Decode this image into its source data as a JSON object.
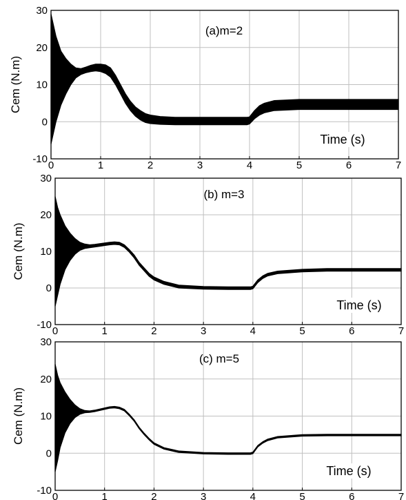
{
  "chart_data": [
    {
      "type": "line",
      "annotation": "(a)m=2",
      "ylabel": "Cem (N.m)",
      "xlabel": "Time (s)",
      "xlim": [
        0,
        7
      ],
      "ylim": [
        -10,
        30
      ],
      "x_ticks": [
        "0",
        "1",
        "2",
        "3",
        "4",
        "5",
        "6",
        "7"
      ],
      "y_ticks": [
        "-10",
        "0",
        "10",
        "20",
        "30"
      ],
      "grid": true,
      "envelope_t": [
        0,
        0.05,
        0.1,
        0.2,
        0.3,
        0.4,
        0.5,
        0.6,
        0.7,
        0.8,
        0.9,
        1.0,
        1.1,
        1.2,
        1.3,
        1.4,
        1.5,
        1.6,
        1.7,
        1.8,
        1.9,
        2.0,
        2.2,
        2.5,
        3.0,
        3.5,
        3.95,
        4.0,
        4.1,
        4.2,
        4.3,
        4.5,
        5.0,
        5.5,
        6.0,
        6.5,
        7.0
      ],
      "upper": [
        29,
        26,
        23,
        19,
        17,
        15.5,
        14.5,
        14.3,
        14.7,
        15.2,
        15.5,
        15.5,
        15.3,
        14.5,
        12.5,
        10,
        7.5,
        5.5,
        4,
        3,
        2.2,
        1.8,
        1.4,
        1.2,
        1.2,
        1.2,
        1.2,
        1.3,
        3,
        4.3,
        5,
        5.7,
        6,
        6,
        6,
        6,
        6
      ],
      "lower": [
        -6,
        -3,
        0,
        4.5,
        7.5,
        10,
        11.8,
        12.7,
        13.2,
        13.5,
        13.7,
        13.5,
        13,
        12,
        10,
        7.5,
        5,
        3,
        1.5,
        0.5,
        -0.2,
        -0.5,
        -0.7,
        -0.8,
        -0.8,
        -0.8,
        -0.8,
        -0.6,
        0.8,
        1.8,
        2.4,
        3,
        3.3,
        3.3,
        3.3,
        3.3,
        3.3
      ]
    },
    {
      "type": "line",
      "annotation": "(b) m=3",
      "ylabel": "Cem (N.m)",
      "xlabel": "Time (s)",
      "xlim": [
        0,
        7
      ],
      "ylim": [
        -10,
        30
      ],
      "x_ticks": [
        "0",
        "1",
        "2",
        "3",
        "4",
        "5",
        "6",
        "7"
      ],
      "y_ticks": [
        "-10",
        "0",
        "10",
        "20",
        "30"
      ],
      "grid": true,
      "envelope_t": [
        0,
        0.05,
        0.1,
        0.2,
        0.3,
        0.4,
        0.5,
        0.6,
        0.7,
        0.8,
        0.9,
        1.0,
        1.1,
        1.2,
        1.3,
        1.4,
        1.5,
        1.6,
        1.7,
        1.8,
        1.9,
        2.0,
        2.2,
        2.5,
        3.0,
        3.5,
        3.95,
        4.0,
        4.1,
        4.2,
        4.3,
        4.5,
        5.0,
        5.5,
        6.0,
        6.5,
        7.0
      ],
      "upper": [
        25,
        22,
        20,
        17,
        15,
        13.5,
        12.5,
        12,
        11.8,
        11.9,
        12.1,
        12.3,
        12.5,
        12.6,
        12.5,
        11.8,
        10.5,
        9,
        7,
        5.5,
        4,
        3,
        1.8,
        0.8,
        0.4,
        0.3,
        0.3,
        0.5,
        2.2,
        3.3,
        4,
        4.6,
        5.1,
        5.3,
        5.3,
        5.3,
        5.3
      ],
      "lower": [
        -5,
        -2,
        1,
        5,
        7.5,
        9.2,
        10.3,
        10.8,
        11,
        11.2,
        11.4,
        11.6,
        11.8,
        11.9,
        11.8,
        11.1,
        9.8,
        8.2,
        6.2,
        4.7,
        3.2,
        2.2,
        1,
        0,
        -0.3,
        -0.4,
        -0.4,
        -0.2,
        1.5,
        2.6,
        3.3,
        3.9,
        4.4,
        4.6,
        4.6,
        4.6,
        4.6
      ]
    },
    {
      "type": "line",
      "annotation": "(c) m=5",
      "ylabel": "Cem (N.m)",
      "xlabel": "Time (s)",
      "xlim": [
        0,
        7
      ],
      "ylim": [
        -10,
        30
      ],
      "x_ticks": [
        "0",
        "1",
        "2",
        "3",
        "4",
        "5",
        "6",
        "7"
      ],
      "y_ticks": [
        "-10",
        "0",
        "10",
        "20",
        "30"
      ],
      "grid": true,
      "envelope_t": [
        0,
        0.05,
        0.1,
        0.2,
        0.3,
        0.4,
        0.5,
        0.6,
        0.7,
        0.8,
        0.9,
        1.0,
        1.1,
        1.2,
        1.3,
        1.4,
        1.5,
        1.6,
        1.7,
        1.8,
        1.9,
        2.0,
        2.2,
        2.5,
        3.0,
        3.5,
        3.95,
        4.0,
        4.1,
        4.2,
        4.3,
        4.5,
        5.0,
        5.5,
        6.0,
        6.5,
        7.0
      ],
      "upper": [
        24,
        21,
        19,
        16.5,
        14.5,
        13,
        12,
        11.5,
        11.4,
        11.6,
        11.9,
        12.2,
        12.5,
        12.6,
        12.4,
        11.8,
        10.5,
        9,
        7,
        5.4,
        4,
        2.8,
        1.5,
        0.6,
        0.2,
        0.1,
        0.1,
        0.3,
        2.1,
        3.1,
        3.8,
        4.5,
        5,
        5.1,
        5.1,
        5.1,
        5.1
      ],
      "lower": [
        -5,
        -2,
        1.5,
        5.5,
        8,
        9.6,
        10.5,
        10.9,
        11,
        11.2,
        11.5,
        11.8,
        12.1,
        12.2,
        12,
        11.4,
        10.1,
        8.6,
        6.6,
        5,
        3.6,
        2.4,
        1.1,
        0.2,
        -0.2,
        -0.3,
        -0.3,
        -0.1,
        1.7,
        2.7,
        3.4,
        4.1,
        4.6,
        4.7,
        4.7,
        4.7,
        4.7
      ]
    }
  ]
}
